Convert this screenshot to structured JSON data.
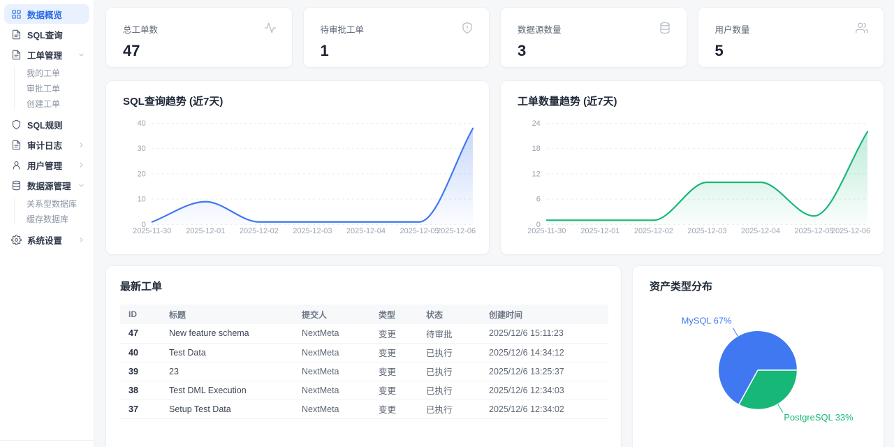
{
  "colors": {
    "accent_blue": "#3f78f0",
    "accent_green": "#17b877",
    "sidebar_active_bg": "#e8f1fd",
    "sidebar_active_text": "#2e6ce8",
    "axis_label": "#9aa3b2",
    "gridline": "#e8ebf0"
  },
  "sidebar": {
    "items": [
      {
        "label": "数据概览",
        "icon": "grid-icon",
        "active": true
      },
      {
        "label": "SQL查询",
        "icon": "file-icon"
      },
      {
        "label": "工单管理",
        "icon": "file-icon",
        "chevron": "down",
        "children": [
          "我的工单",
          "审批工单",
          "创建工单"
        ]
      },
      {
        "label": "SQL规则",
        "icon": "shield-icon"
      },
      {
        "label": "审计日志",
        "icon": "file-icon",
        "chevron": "right"
      },
      {
        "label": "用户管理",
        "icon": "user-icon",
        "chevron": "right"
      },
      {
        "label": "数据源管理",
        "icon": "database-icon",
        "chevron": "down",
        "children": [
          "关系型数据库",
          "缓存数据库"
        ]
      },
      {
        "label": "系统设置",
        "icon": "gear-icon",
        "chevron": "right"
      }
    ]
  },
  "stats": [
    {
      "label": "总工单数",
      "value": "47",
      "icon": "activity-icon"
    },
    {
      "label": "待审批工单",
      "value": "1",
      "icon": "shield-alert-icon"
    },
    {
      "label": "数据源数量",
      "value": "3",
      "icon": "database-icon"
    },
    {
      "label": "用户数量",
      "value": "5",
      "icon": "users-icon"
    }
  ],
  "chart_data": [
    {
      "type": "line",
      "title": "SQL查询趋势 (近7天)",
      "x": [
        "2025-11-30",
        "2025-12-01",
        "2025-12-02",
        "2025-12-03",
        "2025-12-04",
        "2025-12-05",
        "2025-12-06"
      ],
      "values": [
        1,
        9,
        1,
        1,
        1,
        1,
        38
      ],
      "yticks": [
        0,
        10,
        20,
        30,
        40
      ],
      "ylim": [
        0,
        40
      ],
      "color": "#3f78f0",
      "grid": "dashed",
      "smooth": true,
      "area": true,
      "legend": "none"
    },
    {
      "type": "line",
      "title": "工单数量趋势 (近7天)",
      "x": [
        "2025-11-30",
        "2025-12-01",
        "2025-12-02",
        "2025-12-03",
        "2025-12-04",
        "2025-12-05",
        "2025-12-06"
      ],
      "values": [
        1,
        1,
        1,
        10,
        10,
        2,
        22
      ],
      "yticks": [
        0,
        6,
        12,
        18,
        24
      ],
      "ylim": [
        0,
        24
      ],
      "color": "#17b877",
      "grid": "dashed",
      "smooth": true,
      "area": true,
      "legend": "none"
    },
    {
      "type": "pie",
      "title": "资产类型分布",
      "slices": [
        {
          "label": "MySQL",
          "pct": 67,
          "color": "#3f78f0"
        },
        {
          "label": "PostgreSQL",
          "pct": 33,
          "color": "#17b877"
        }
      ]
    }
  ],
  "table": {
    "title": "最新工单",
    "columns": [
      "ID",
      "标题",
      "提交人",
      "类型",
      "状态",
      "创建时间"
    ],
    "rows": [
      [
        "47",
        "New feature schema",
        "NextMeta",
        "变更",
        "待审批",
        "2025/12/6 15:11:23"
      ],
      [
        "40",
        "Test Data",
        "NextMeta",
        "变更",
        "已执行",
        "2025/12/6 14:34:12"
      ],
      [
        "39",
        "23",
        "NextMeta",
        "变更",
        "已执行",
        "2025/12/6 13:25:37"
      ],
      [
        "38",
        "Test DML Execution",
        "NextMeta",
        "变更",
        "已执行",
        "2025/12/6 12:34:03"
      ],
      [
        "37",
        "Setup Test Data",
        "NextMeta",
        "变更",
        "已执行",
        "2025/12/6 12:34:02"
      ]
    ]
  }
}
